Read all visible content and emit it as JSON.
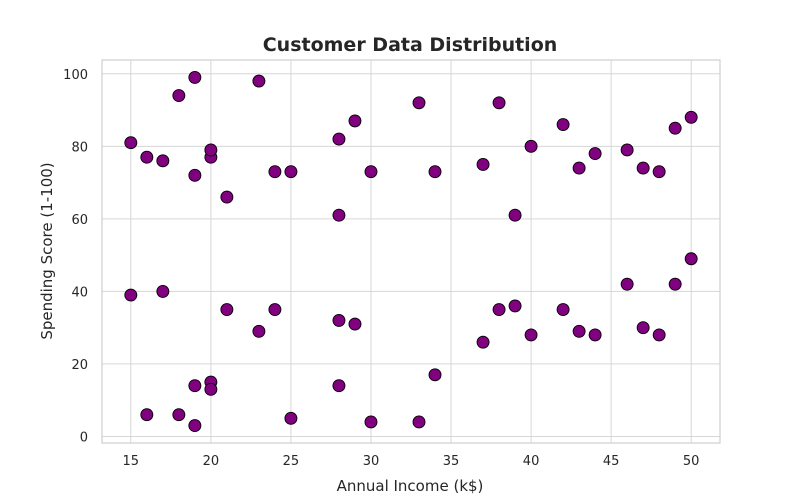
{
  "chart_data": {
    "type": "scatter",
    "title": "Customer Data Distribution",
    "xlabel": "Annual Income (k$)",
    "ylabel": "Spending Score (1-100)",
    "xlim": [
      13.2,
      51.8
    ],
    "ylim": [
      -1.8,
      103.8
    ],
    "xticks": [
      15,
      20,
      25,
      30,
      35,
      40,
      45,
      50
    ],
    "yticks": [
      0,
      20,
      40,
      60,
      80,
      100
    ],
    "grid": true,
    "point_color": "#800080",
    "edge_color": "#000000",
    "series": [
      {
        "x": [
          15,
          15,
          16,
          16,
          17,
          17,
          18,
          18,
          19,
          19,
          19,
          19,
          20,
          20,
          20,
          20,
          21,
          21,
          23,
          23,
          24,
          24,
          25,
          25,
          28,
          28,
          28,
          28,
          29,
          29,
          30,
          30,
          33,
          33,
          34,
          34,
          37,
          37,
          38,
          38,
          39,
          39,
          40,
          40,
          42,
          42,
          43,
          43,
          44,
          44,
          46,
          46,
          47,
          47,
          48,
          48,
          49,
          49,
          50,
          50
        ],
        "y": [
          39,
          81,
          6,
          77,
          40,
          76,
          6,
          94,
          3,
          72,
          14,
          99,
          15,
          77,
          13,
          79,
          35,
          66,
          29,
          98,
          35,
          73,
          5,
          73,
          14,
          82,
          32,
          61,
          31,
          87,
          4,
          73,
          4,
          92,
          17,
          73,
          26,
          75,
          35,
          92,
          36,
          61,
          28,
          80,
          35,
          86,
          29,
          74,
          28,
          78,
          42,
          79,
          30,
          74,
          28,
          73,
          42,
          85,
          49,
          88
        ]
      }
    ]
  }
}
